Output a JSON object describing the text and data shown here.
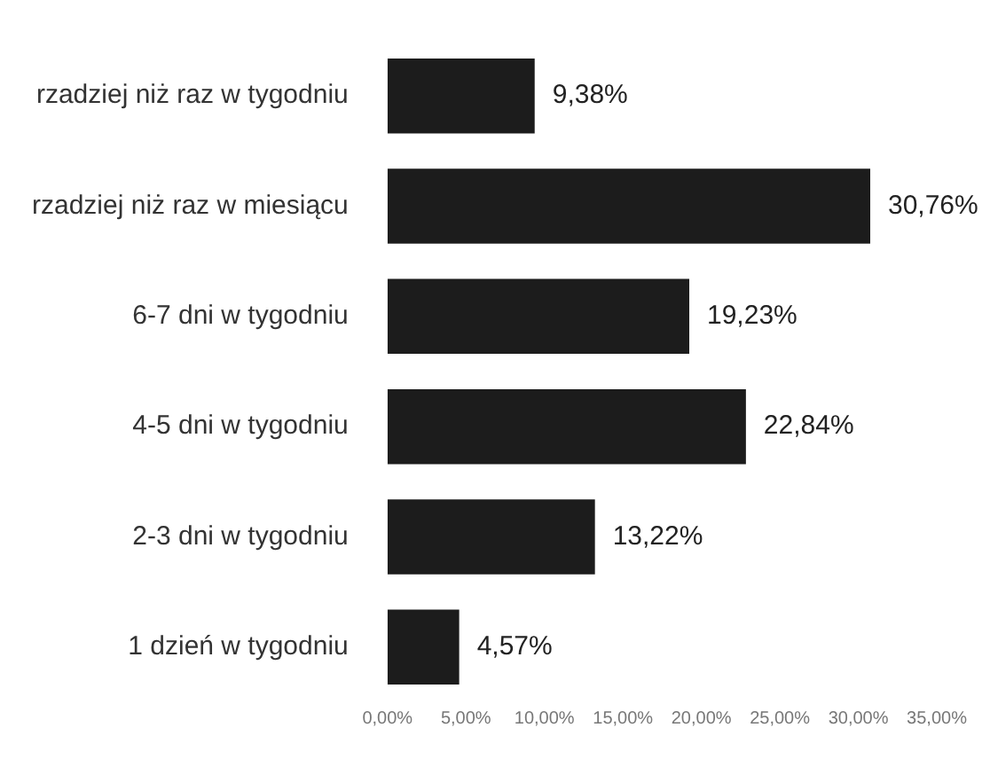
{
  "chart_data": {
    "type": "bar",
    "orientation": "horizontal",
    "categories": [
      "rzadziej niż raz w tygodniu",
      "rzadziej niż raz w miesiącu",
      "6-7 dni w tygodniu",
      "4-5 dni w tygodniu",
      "2-3 dni w tygodniu",
      "1 dzień w tygodniu"
    ],
    "values": [
      9.38,
      30.76,
      19.23,
      22.84,
      13.22,
      4.57
    ],
    "value_labels": [
      "9,38%",
      "30,76%",
      "19,23%",
      "22,84%",
      "13,22%",
      "4,57%"
    ],
    "color": "#1c1c1c",
    "xlim": [
      0,
      35
    ],
    "xticks": [
      {
        "value": 0,
        "label": "0,00%"
      },
      {
        "value": 5,
        "label": "5,00%"
      },
      {
        "value": 10,
        "label": "10,00%"
      },
      {
        "value": 15,
        "label": "15,00%"
      },
      {
        "value": 20,
        "label": "20,00%"
      },
      {
        "value": 25,
        "label": "25,00%"
      },
      {
        "value": 30,
        "label": "30,00%"
      },
      {
        "value": 35,
        "label": "35,00%"
      }
    ],
    "grid": false,
    "legend": false
  }
}
